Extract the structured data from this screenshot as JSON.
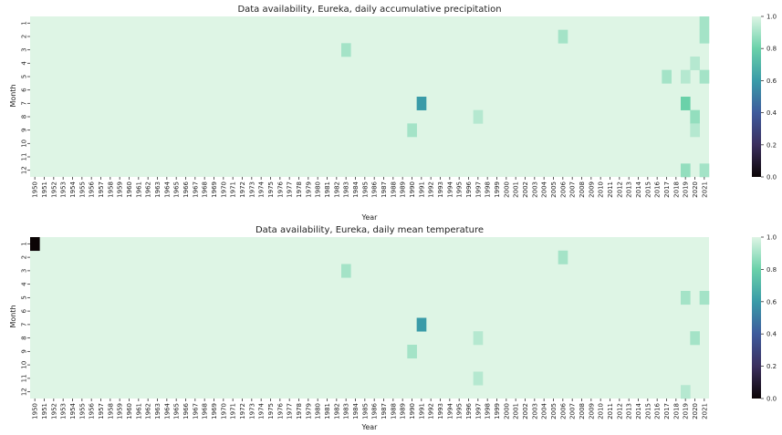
{
  "chart_data": [
    {
      "type": "heatmap",
      "title": "Data availability, Eureka, daily accumulative precipitation",
      "xlabel": "Year",
      "ylabel": "Month",
      "x_start": 1950,
      "x_end": 2021,
      "rows": [
        "1",
        "2",
        "3",
        "4",
        "5",
        "6",
        "7",
        "8",
        "9",
        "10",
        "11",
        "12"
      ],
      "value_range": [
        0.0,
        1.0
      ],
      "default_value": 1.0,
      "colorbar_ticks": [
        "0.0",
        "0.2",
        "0.4",
        "0.6",
        "0.8",
        "1.0"
      ],
      "cells": [
        {
          "year": 2006,
          "month": 2,
          "value": 0.9
        },
        {
          "year": 2021,
          "month": 1,
          "value": 0.9
        },
        {
          "year": 2021,
          "month": 2,
          "value": 0.9
        },
        {
          "year": 1983,
          "month": 3,
          "value": 0.9
        },
        {
          "year": 2020,
          "month": 4,
          "value": 0.93
        },
        {
          "year": 2017,
          "month": 5,
          "value": 0.9
        },
        {
          "year": 2019,
          "month": 5,
          "value": 0.93
        },
        {
          "year": 2021,
          "month": 5,
          "value": 0.9
        },
        {
          "year": 1991,
          "month": 7,
          "value": 0.6
        },
        {
          "year": 2019,
          "month": 7,
          "value": 0.8
        },
        {
          "year": 1997,
          "month": 8,
          "value": 0.93
        },
        {
          "year": 2020,
          "month": 8,
          "value": 0.87
        },
        {
          "year": 1990,
          "month": 9,
          "value": 0.9
        },
        {
          "year": 2020,
          "month": 9,
          "value": 0.93
        },
        {
          "year": 2019,
          "month": 12,
          "value": 0.87
        },
        {
          "year": 2021,
          "month": 12,
          "value": 0.9
        }
      ]
    },
    {
      "type": "heatmap",
      "title": "Data availability, Eureka, daily mean temperature",
      "xlabel": "Year",
      "ylabel": "Month",
      "x_start": 1950,
      "x_end": 2021,
      "rows": [
        "1",
        "2",
        "3",
        "4",
        "5",
        "6",
        "7",
        "8",
        "9",
        "10",
        "11",
        "12"
      ],
      "value_range": [
        0.0,
        1.0
      ],
      "default_value": 1.0,
      "colorbar_ticks": [
        "0.0",
        "0.2",
        "0.4",
        "0.6",
        "0.8",
        "1.0"
      ],
      "cells": [
        {
          "year": 1950,
          "month": 1,
          "value": 0.0
        },
        {
          "year": 2006,
          "month": 2,
          "value": 0.9
        },
        {
          "year": 1983,
          "month": 3,
          "value": 0.9
        },
        {
          "year": 2019,
          "month": 5,
          "value": 0.9
        },
        {
          "year": 2021,
          "month": 5,
          "value": 0.9
        },
        {
          "year": 1991,
          "month": 7,
          "value": 0.6
        },
        {
          "year": 1997,
          "month": 8,
          "value": 0.93
        },
        {
          "year": 2020,
          "month": 8,
          "value": 0.9
        },
        {
          "year": 1990,
          "month": 9,
          "value": 0.9
        },
        {
          "year": 1997,
          "month": 11,
          "value": 0.93
        },
        {
          "year": 2019,
          "month": 12,
          "value": 0.93
        }
      ]
    }
  ]
}
